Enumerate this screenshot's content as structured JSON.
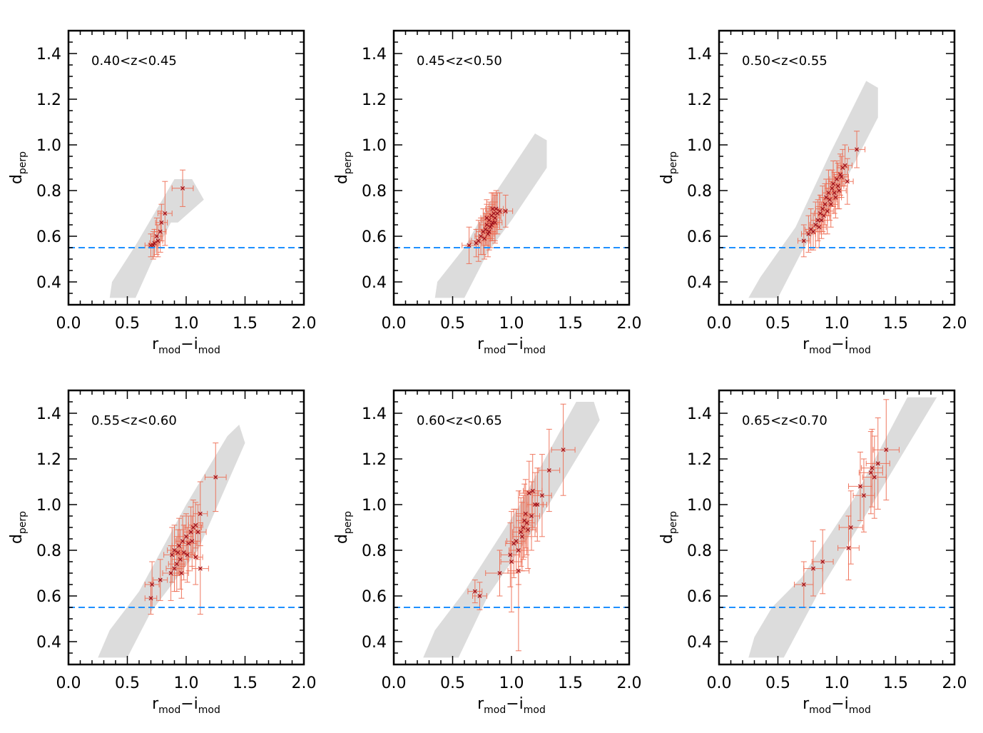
{
  "figure": {
    "xlabel_main": "r",
    "xlabel_sub1": "mod",
    "xlabel_dash": "−",
    "xlabel_main2": "i",
    "xlabel_sub2": "mod",
    "ylabel_main": "d",
    "ylabel_sub": "perp",
    "colors": {
      "band": "#dcdcdc",
      "errorbar": "#ee6a50",
      "marker": "#a0141e",
      "cut": "#1e90ff",
      "axis": "#000000"
    }
  },
  "chart_data": [
    {
      "type": "scatter",
      "label": "0.40<z<0.45",
      "xlim": [
        0.0,
        2.0
      ],
      "ylim": [
        0.3,
        1.5
      ],
      "xticks": [
        "0.0",
        "0.5",
        "1.0",
        "1.5",
        "2.0"
      ],
      "yticks": [
        "0.4",
        "0.6",
        "0.8",
        "1.0",
        "1.2",
        "1.4"
      ],
      "horizontal_line": 0.55,
      "band": [
        [
          0.35,
          0.33
        ],
        [
          0.57,
          0.33
        ],
        [
          0.77,
          0.56
        ],
        [
          0.87,
          0.66
        ],
        [
          0.93,
          0.66
        ],
        [
          1.15,
          0.76
        ],
        [
          1.05,
          0.85
        ],
        [
          0.9,
          0.85
        ],
        [
          0.57,
          0.56
        ],
        [
          0.37,
          0.4
        ]
      ],
      "points": [
        {
          "x": 0.7,
          "y": 0.56,
          "xe": 0.05,
          "ye": 0.05
        },
        {
          "x": 0.72,
          "y": 0.56,
          "xe": 0.04,
          "ye": 0.06
        },
        {
          "x": 0.75,
          "y": 0.6,
          "xe": 0.05,
          "ye": 0.08
        },
        {
          "x": 0.76,
          "y": 0.58,
          "xe": 0.04,
          "ye": 0.07
        },
        {
          "x": 0.78,
          "y": 0.62,
          "xe": 0.05,
          "ye": 0.09
        },
        {
          "x": 0.79,
          "y": 0.66,
          "xe": 0.05,
          "ye": 0.08
        },
        {
          "x": 0.82,
          "y": 0.7,
          "xe": 0.06,
          "ye": 0.14
        },
        {
          "x": 0.97,
          "y": 0.81,
          "xe": 0.09,
          "ye": 0.08
        },
        {
          "x": 0.73,
          "y": 0.57,
          "xe": 0.04,
          "ye": 0.06
        }
      ]
    },
    {
      "type": "scatter",
      "label": "0.45<z<0.50",
      "xlim": [
        0.0,
        2.0
      ],
      "ylim": [
        0.3,
        1.5
      ],
      "xticks": [
        "0.0",
        "0.5",
        "1.0",
        "1.5",
        "2.0"
      ],
      "yticks": [
        "0.4",
        "0.6",
        "0.8",
        "1.0",
        "1.2",
        "1.4"
      ],
      "horizontal_line": 0.55,
      "band": [
        [
          0.35,
          0.33
        ],
        [
          0.6,
          0.33
        ],
        [
          0.8,
          0.53
        ],
        [
          1.0,
          0.67
        ],
        [
          1.3,
          0.9
        ],
        [
          1.3,
          1.02
        ],
        [
          1.2,
          1.05
        ],
        [
          0.85,
          0.78
        ],
        [
          0.6,
          0.55
        ],
        [
          0.37,
          0.4
        ]
      ],
      "points": [
        {
          "x": 0.64,
          "y": 0.56,
          "xe": 0.06,
          "ye": 0.08
        },
        {
          "x": 0.7,
          "y": 0.57,
          "xe": 0.05,
          "ye": 0.06
        },
        {
          "x": 0.72,
          "y": 0.58,
          "xe": 0.06,
          "ye": 0.09
        },
        {
          "x": 0.74,
          "y": 0.6,
          "xe": 0.05,
          "ye": 0.08
        },
        {
          "x": 0.76,
          "y": 0.62,
          "xe": 0.06,
          "ye": 0.1
        },
        {
          "x": 0.78,
          "y": 0.63,
          "xe": 0.05,
          "ye": 0.07
        },
        {
          "x": 0.79,
          "y": 0.65,
          "xe": 0.06,
          "ye": 0.09
        },
        {
          "x": 0.8,
          "y": 0.61,
          "xe": 0.05,
          "ye": 0.1
        },
        {
          "x": 0.81,
          "y": 0.67,
          "xe": 0.06,
          "ye": 0.08
        },
        {
          "x": 0.82,
          "y": 0.64,
          "xe": 0.05,
          "ye": 0.09
        },
        {
          "x": 0.83,
          "y": 0.69,
          "xe": 0.06,
          "ye": 0.1
        },
        {
          "x": 0.84,
          "y": 0.66,
          "xe": 0.05,
          "ye": 0.08
        },
        {
          "x": 0.85,
          "y": 0.7,
          "xe": 0.06,
          "ye": 0.09
        },
        {
          "x": 0.86,
          "y": 0.68,
          "xe": 0.05,
          "ye": 0.1
        },
        {
          "x": 0.87,
          "y": 0.72,
          "xe": 0.06,
          "ye": 0.08
        },
        {
          "x": 0.88,
          "y": 0.7,
          "xe": 0.05,
          "ye": 0.09
        },
        {
          "x": 0.9,
          "y": 0.71,
          "xe": 0.06,
          "ye": 0.08
        },
        {
          "x": 0.95,
          "y": 0.71,
          "xe": 0.06,
          "ye": 0.07
        },
        {
          "x": 0.77,
          "y": 0.59,
          "xe": 0.05,
          "ye": 0.09
        },
        {
          "x": 0.81,
          "y": 0.62,
          "xe": 0.06,
          "ye": 0.08
        },
        {
          "x": 0.83,
          "y": 0.65,
          "xe": 0.05,
          "ye": 0.07
        },
        {
          "x": 0.86,
          "y": 0.66,
          "xe": 0.06,
          "ye": 0.09
        },
        {
          "x": 0.79,
          "y": 0.68,
          "xe": 0.05,
          "ye": 0.08
        },
        {
          "x": 0.84,
          "y": 0.72,
          "xe": 0.06,
          "ye": 0.07
        }
      ]
    },
    {
      "type": "scatter",
      "label": "0.50<z<0.55",
      "xlim": [
        0.0,
        2.0
      ],
      "ylim": [
        0.3,
        1.5
      ],
      "xticks": [
        "0.0",
        "0.5",
        "1.0",
        "1.5",
        "2.0"
      ],
      "yticks": [
        "0.4",
        "0.6",
        "0.8",
        "1.0",
        "1.2",
        "1.4"
      ],
      "horizontal_line": 0.55,
      "band": [
        [
          0.25,
          0.33
        ],
        [
          0.5,
          0.33
        ],
        [
          0.7,
          0.53
        ],
        [
          1.0,
          0.77
        ],
        [
          1.35,
          1.12
        ],
        [
          1.35,
          1.25
        ],
        [
          1.25,
          1.28
        ],
        [
          0.95,
          0.97
        ],
        [
          0.65,
          0.64
        ],
        [
          0.35,
          0.42
        ]
      ],
      "points": [
        {
          "x": 0.72,
          "y": 0.58,
          "xe": 0.05,
          "ye": 0.07
        },
        {
          "x": 0.76,
          "y": 0.61,
          "xe": 0.06,
          "ye": 0.08
        },
        {
          "x": 0.78,
          "y": 0.63,
          "xe": 0.05,
          "ye": 0.09
        },
        {
          "x": 0.8,
          "y": 0.62,
          "xe": 0.06,
          "ye": 0.08
        },
        {
          "x": 0.82,
          "y": 0.65,
          "xe": 0.05,
          "ye": 0.1
        },
        {
          "x": 0.84,
          "y": 0.67,
          "xe": 0.06,
          "ye": 0.09
        },
        {
          "x": 0.86,
          "y": 0.7,
          "xe": 0.05,
          "ye": 0.08
        },
        {
          "x": 0.88,
          "y": 0.72,
          "xe": 0.06,
          "ye": 0.1
        },
        {
          "x": 0.9,
          "y": 0.74,
          "xe": 0.05,
          "ye": 0.09
        },
        {
          "x": 0.91,
          "y": 0.77,
          "xe": 0.06,
          "ye": 0.08
        },
        {
          "x": 0.93,
          "y": 0.79,
          "xe": 0.05,
          "ye": 0.1
        },
        {
          "x": 0.94,
          "y": 0.76,
          "xe": 0.06,
          "ye": 0.09
        },
        {
          "x": 0.96,
          "y": 0.81,
          "xe": 0.05,
          "ye": 0.08
        },
        {
          "x": 0.97,
          "y": 0.83,
          "xe": 0.06,
          "ye": 0.1
        },
        {
          "x": 0.98,
          "y": 0.79,
          "xe": 0.05,
          "ye": 0.09
        },
        {
          "x": 1.0,
          "y": 0.85,
          "xe": 0.06,
          "ye": 0.08
        },
        {
          "x": 1.01,
          "y": 0.82,
          "xe": 0.05,
          "ye": 0.1
        },
        {
          "x": 1.03,
          "y": 0.87,
          "xe": 0.06,
          "ye": 0.09
        },
        {
          "x": 1.05,
          "y": 0.9,
          "xe": 0.05,
          "ye": 0.08
        },
        {
          "x": 1.07,
          "y": 0.91,
          "xe": 0.06,
          "ye": 0.09
        },
        {
          "x": 1.09,
          "y": 0.84,
          "xe": 0.05,
          "ye": 0.1
        },
        {
          "x": 1.17,
          "y": 0.98,
          "xe": 0.07,
          "ye": 0.08
        },
        {
          "x": 0.85,
          "y": 0.64,
          "xe": 0.06,
          "ye": 0.09
        },
        {
          "x": 0.89,
          "y": 0.69,
          "xe": 0.05,
          "ye": 0.08
        },
        {
          "x": 0.95,
          "y": 0.74,
          "xe": 0.06,
          "ye": 0.1
        },
        {
          "x": 0.99,
          "y": 0.77,
          "xe": 0.05,
          "ye": 0.09
        },
        {
          "x": 1.02,
          "y": 0.8,
          "xe": 0.06,
          "ye": 0.08
        },
        {
          "x": 0.92,
          "y": 0.71,
          "xe": 0.05,
          "ye": 0.1
        },
        {
          "x": 1.04,
          "y": 0.86,
          "xe": 0.06,
          "ye": 0.09
        },
        {
          "x": 0.87,
          "y": 0.67,
          "xe": 0.05,
          "ye": 0.08
        }
      ]
    },
    {
      "type": "scatter",
      "label": "0.55<z<0.60",
      "xlim": [
        0.0,
        2.0
      ],
      "ylim": [
        0.3,
        1.5
      ],
      "xticks": [
        "0.0",
        "0.5",
        "1.0",
        "1.5",
        "2.0"
      ],
      "yticks": [
        "0.4",
        "0.6",
        "0.8",
        "1.0",
        "1.2",
        "1.4"
      ],
      "horizontal_line": 0.55,
      "band": [
        [
          0.25,
          0.33
        ],
        [
          0.5,
          0.33
        ],
        [
          0.7,
          0.53
        ],
        [
          1.1,
          0.8
        ],
        [
          1.5,
          1.27
        ],
        [
          1.45,
          1.35
        ],
        [
          1.35,
          1.3
        ],
        [
          1.0,
          1.0
        ],
        [
          0.6,
          0.62
        ],
        [
          0.35,
          0.45
        ]
      ],
      "points": [
        {
          "x": 0.7,
          "y": 0.59,
          "xe": 0.05,
          "ye": 0.07
        },
        {
          "x": 0.71,
          "y": 0.65,
          "xe": 0.06,
          "ye": 0.1
        },
        {
          "x": 0.78,
          "y": 0.67,
          "xe": 0.06,
          "ye": 0.09
        },
        {
          "x": 0.87,
          "y": 0.7,
          "xe": 0.07,
          "ye": 0.12
        },
        {
          "x": 0.88,
          "y": 0.78,
          "xe": 0.07,
          "ye": 0.12
        },
        {
          "x": 0.9,
          "y": 0.8,
          "xe": 0.06,
          "ye": 0.11
        },
        {
          "x": 0.92,
          "y": 0.74,
          "xe": 0.07,
          "ye": 0.12
        },
        {
          "x": 0.93,
          "y": 0.79,
          "xe": 0.06,
          "ye": 0.1
        },
        {
          "x": 0.95,
          "y": 0.76,
          "xe": 0.07,
          "ye": 0.13
        },
        {
          "x": 0.97,
          "y": 0.84,
          "xe": 0.06,
          "ye": 0.11
        },
        {
          "x": 0.98,
          "y": 0.79,
          "xe": 0.07,
          "ye": 0.12
        },
        {
          "x": 1.0,
          "y": 0.86,
          "xe": 0.06,
          "ye": 0.1
        },
        {
          "x": 1.02,
          "y": 0.83,
          "xe": 0.07,
          "ye": 0.12
        },
        {
          "x": 1.04,
          "y": 0.88,
          "xe": 0.06,
          "ye": 0.11
        },
        {
          "x": 1.06,
          "y": 0.9,
          "xe": 0.07,
          "ye": 0.12
        },
        {
          "x": 1.08,
          "y": 0.91,
          "xe": 0.06,
          "ye": 0.1
        },
        {
          "x": 1.1,
          "y": 0.88,
          "xe": 0.07,
          "ye": 0.12
        },
        {
          "x": 1.12,
          "y": 0.96,
          "xe": 0.06,
          "ye": 0.14
        },
        {
          "x": 1.12,
          "y": 0.72,
          "xe": 0.07,
          "ye": 0.2
        },
        {
          "x": 1.08,
          "y": 0.77,
          "xe": 0.06,
          "ye": 0.12
        },
        {
          "x": 1.25,
          "y": 1.12,
          "xe": 0.09,
          "ye": 0.15
        },
        {
          "x": 0.96,
          "y": 0.7,
          "xe": 0.06,
          "ye": 0.11
        },
        {
          "x": 0.9,
          "y": 0.72,
          "xe": 0.07,
          "ye": 0.1
        },
        {
          "x": 1.01,
          "y": 0.78,
          "xe": 0.06,
          "ye": 0.12
        },
        {
          "x": 1.05,
          "y": 0.84,
          "xe": 0.07,
          "ye": 0.11
        },
        {
          "x": 0.94,
          "y": 0.82,
          "xe": 0.06,
          "ye": 0.12
        }
      ]
    },
    {
      "type": "scatter",
      "label": "0.60<z<0.65",
      "xlim": [
        0.0,
        2.0
      ],
      "ylim": [
        0.3,
        1.5
      ],
      "xticks": [
        "0.0",
        "0.5",
        "1.0",
        "1.5",
        "2.0"
      ],
      "yticks": [
        "0.4",
        "0.6",
        "0.8",
        "1.0",
        "1.2",
        "1.4"
      ],
      "horizontal_line": 0.55,
      "band": [
        [
          0.25,
          0.33
        ],
        [
          0.55,
          0.33
        ],
        [
          0.8,
          0.6
        ],
        [
          1.2,
          0.9
        ],
        [
          1.75,
          1.37
        ],
        [
          1.7,
          1.45
        ],
        [
          1.55,
          1.45
        ],
        [
          1.05,
          0.98
        ],
        [
          0.6,
          0.62
        ],
        [
          0.35,
          0.45
        ]
      ],
      "points": [
        {
          "x": 0.69,
          "y": 0.62,
          "xe": 0.06,
          "ye": 0.05
        },
        {
          "x": 0.73,
          "y": 0.6,
          "xe": 0.06,
          "ye": 0.06
        },
        {
          "x": 0.9,
          "y": 0.7,
          "xe": 0.12,
          "ye": 0.1
        },
        {
          "x": 0.99,
          "y": 0.78,
          "xe": 0.08,
          "ye": 0.14
        },
        {
          "x": 1.0,
          "y": 0.75,
          "xe": 0.09,
          "ye": 0.22
        },
        {
          "x": 1.02,
          "y": 0.83,
          "xe": 0.07,
          "ye": 0.15
        },
        {
          "x": 1.04,
          "y": 0.84,
          "xe": 0.08,
          "ye": 0.14
        },
        {
          "x": 1.06,
          "y": 0.71,
          "xe": 0.09,
          "ye": 0.35
        },
        {
          "x": 1.08,
          "y": 0.88,
          "xe": 0.07,
          "ye": 0.15
        },
        {
          "x": 1.1,
          "y": 0.9,
          "xe": 0.08,
          "ye": 0.14
        },
        {
          "x": 1.11,
          "y": 0.93,
          "xe": 0.07,
          "ye": 0.16
        },
        {
          "x": 1.12,
          "y": 0.96,
          "xe": 0.08,
          "ye": 0.15
        },
        {
          "x": 1.14,
          "y": 0.89,
          "xe": 0.07,
          "ye": 0.17
        },
        {
          "x": 1.15,
          "y": 1.05,
          "xe": 0.08,
          "ye": 0.14
        },
        {
          "x": 1.17,
          "y": 0.95,
          "xe": 0.07,
          "ye": 0.15
        },
        {
          "x": 1.18,
          "y": 1.06,
          "xe": 0.08,
          "ye": 0.16
        },
        {
          "x": 1.2,
          "y": 1.0,
          "xe": 0.07,
          "ye": 0.14
        },
        {
          "x": 1.22,
          "y": 1.0,
          "xe": 0.08,
          "ye": 0.16
        },
        {
          "x": 1.26,
          "y": 1.04,
          "xe": 0.08,
          "ye": 0.18
        },
        {
          "x": 1.32,
          "y": 1.15,
          "xe": 0.09,
          "ye": 0.18
        },
        {
          "x": 1.44,
          "y": 1.24,
          "xe": 0.1,
          "ye": 0.2
        },
        {
          "x": 1.06,
          "y": 0.8,
          "xe": 0.08,
          "ye": 0.15
        },
        {
          "x": 1.13,
          "y": 0.92,
          "xe": 0.07,
          "ye": 0.14
        },
        {
          "x": 1.09,
          "y": 0.86,
          "xe": 0.08,
          "ye": 0.15
        }
      ]
    },
    {
      "type": "scatter",
      "label": "0.65<z<0.70",
      "xlim": [
        0.0,
        2.0
      ],
      "ylim": [
        0.3,
        1.5
      ],
      "xticks": [
        "0.0",
        "0.5",
        "1.0",
        "1.5",
        "2.0"
      ],
      "yticks": [
        "0.4",
        "0.6",
        "0.8",
        "1.0",
        "1.2",
        "1.4"
      ],
      "horizontal_line": 0.55,
      "band": [
        [
          0.25,
          0.33
        ],
        [
          0.55,
          0.33
        ],
        [
          0.85,
          0.62
        ],
        [
          1.3,
          1.0
        ],
        [
          1.85,
          1.47
        ],
        [
          1.6,
          1.47
        ],
        [
          1.15,
          1.03
        ],
        [
          0.7,
          0.68
        ],
        [
          0.45,
          0.55
        ],
        [
          0.3,
          0.42
        ]
      ],
      "points": [
        {
          "x": 0.72,
          "y": 0.65,
          "xe": 0.08,
          "ye": 0.1
        },
        {
          "x": 0.8,
          "y": 0.72,
          "xe": 0.08,
          "ye": 0.12
        },
        {
          "x": 0.88,
          "y": 0.75,
          "xe": 0.09,
          "ye": 0.14
        },
        {
          "x": 1.1,
          "y": 0.81,
          "xe": 0.09,
          "ye": 0.14
        },
        {
          "x": 1.12,
          "y": 0.9,
          "xe": 0.1,
          "ye": 0.16
        },
        {
          "x": 1.2,
          "y": 1.08,
          "xe": 0.1,
          "ye": 0.15
        },
        {
          "x": 1.23,
          "y": 1.04,
          "xe": 0.09,
          "ye": 0.16
        },
        {
          "x": 1.29,
          "y": 1.14,
          "xe": 0.1,
          "ye": 0.18
        },
        {
          "x": 1.3,
          "y": 1.16,
          "xe": 0.09,
          "ye": 0.17
        },
        {
          "x": 1.32,
          "y": 1.12,
          "xe": 0.1,
          "ye": 0.18
        },
        {
          "x": 1.35,
          "y": 1.18,
          "xe": 0.1,
          "ye": 0.2
        },
        {
          "x": 1.42,
          "y": 1.24,
          "xe": 0.11,
          "ye": 0.22
        }
      ]
    }
  ]
}
